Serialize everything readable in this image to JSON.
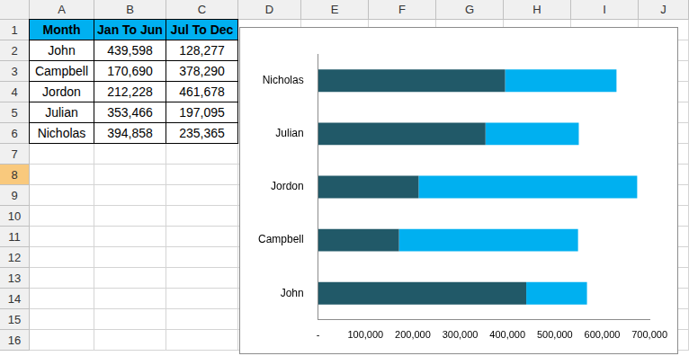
{
  "sheet": {
    "columns": [
      "A",
      "B",
      "C",
      "D",
      "E",
      "F",
      "G",
      "H",
      "I",
      "J"
    ],
    "rows": [
      1,
      2,
      3,
      4,
      5,
      6,
      7,
      8,
      9,
      10,
      11,
      12,
      13,
      14,
      15,
      16
    ]
  },
  "table": {
    "header": [
      "Month",
      "Jan To Jun",
      "Jul To Dec"
    ],
    "rows": [
      [
        "John",
        "439,598",
        "128,277"
      ],
      [
        "Campbell",
        "170,690",
        "378,290"
      ],
      [
        "Jordon",
        "212,228",
        "461,678"
      ],
      [
        "Julian",
        "353,466",
        "197,095"
      ],
      [
        "Nicholas",
        "394,858",
        "235,365"
      ]
    ]
  },
  "chart_data": {
    "type": "bar",
    "orientation": "horizontal",
    "stacked": true,
    "grid": false,
    "categories": [
      "John",
      "Campbell",
      "Jordon",
      "Julian",
      "Nicholas"
    ],
    "series": [
      {
        "name": "Jan To Jun",
        "color": "#215968",
        "values": [
          439598,
          170690,
          212228,
          353466,
          394858
        ]
      },
      {
        "name": "Jul To Dec",
        "color": "#00b0f0",
        "values": [
          128277,
          378290,
          461678,
          197095,
          235365
        ]
      }
    ],
    "xlim": [
      0,
      700000
    ],
    "xticks": [
      {
        "value": 0,
        "label": "-"
      },
      {
        "value": 100000,
        "label": "100,000"
      },
      {
        "value": 200000,
        "label": "200,000"
      },
      {
        "value": 300000,
        "label": "300,000"
      },
      {
        "value": 400000,
        "label": "400,000"
      },
      {
        "value": 500000,
        "label": "500,000"
      },
      {
        "value": 600000,
        "label": "600,000"
      },
      {
        "value": 700000,
        "label": "700,000"
      }
    ]
  }
}
